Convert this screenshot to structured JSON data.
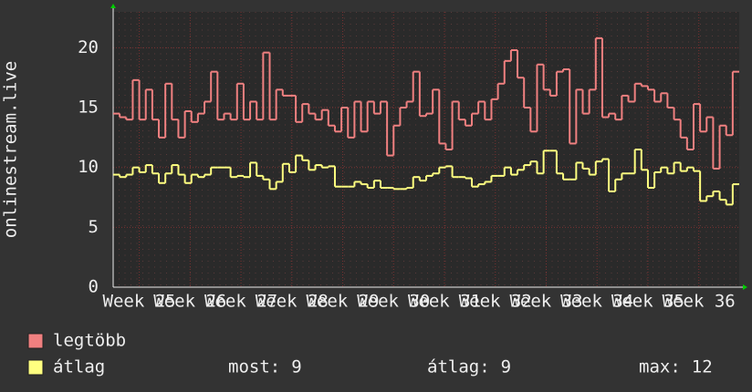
{
  "chart_data": {
    "type": "step",
    "y_label": "onlinestream.live",
    "ylim": [
      0,
      23
    ],
    "yticks": [
      0,
      5,
      10,
      15,
      20
    ],
    "xlim": [
      0,
      96
    ],
    "xticks": [
      {
        "value": 4,
        "label": "Week 25"
      },
      {
        "value": 11.8,
        "label": "Week 26"
      },
      {
        "value": 19.6,
        "label": "Week 27"
      },
      {
        "value": 27.4,
        "label": "Week 28"
      },
      {
        "value": 35.2,
        "label": "Week 29"
      },
      {
        "value": 43,
        "label": "Week 30"
      },
      {
        "value": 50.8,
        "label": "Week 31"
      },
      {
        "value": 58.6,
        "label": "Week 32"
      },
      {
        "value": 66.4,
        "label": "Week 33"
      },
      {
        "value": 74.2,
        "label": "Week 34"
      },
      {
        "value": 82,
        "label": "Week 35"
      },
      {
        "value": 89.8,
        "label": "Week 36"
      }
    ],
    "grid": true,
    "series": [
      {
        "name": "legtöbb",
        "color": "#f08080",
        "values": [
          14.5,
          14.2,
          14,
          17.3,
          14,
          16.5,
          14,
          12.5,
          17,
          14,
          12.5,
          14.7,
          13.8,
          14.5,
          15.5,
          18,
          14,
          14.5,
          14,
          17,
          14,
          15.5,
          14,
          19.6,
          14,
          16.5,
          16,
          16,
          13.8,
          15.3,
          14.5,
          14,
          14.8,
          13.5,
          13,
          15,
          12.5,
          15.5,
          13,
          15.5,
          14.5,
          15.5,
          11,
          13.5,
          15,
          15.5,
          18,
          14.3,
          14.5,
          16.5,
          12,
          11.5,
          15.5,
          14,
          13.5,
          14.5,
          15.5,
          14,
          15.7,
          17,
          18.9,
          19.8,
          17.5,
          15,
          13,
          18.6,
          16.5,
          16,
          18,
          18.2,
          12,
          16.5,
          14.5,
          16.5,
          20.8,
          14.2,
          14.5,
          14,
          16,
          15.5,
          17,
          16.8,
          16.5,
          15.5,
          16.2,
          15,
          14,
          12.5,
          11.5,
          15.3,
          13,
          14.2,
          9.9,
          13.5,
          12.7,
          18
        ]
      },
      {
        "name": "átlag",
        "color": "#ffff80",
        "values": [
          9.4,
          9.2,
          9.4,
          10,
          9.6,
          10.2,
          9.5,
          8.7,
          9.5,
          10.2,
          9.4,
          8.7,
          9.4,
          9.2,
          9.4,
          10,
          10,
          10,
          9.2,
          9.3,
          9.2,
          10.4,
          9.3,
          9,
          8.2,
          8.8,
          10.3,
          9.6,
          11,
          10.6,
          9.8,
          10.2,
          10,
          10.1,
          8.4,
          8.4,
          8.4,
          8.8,
          8.6,
          8.3,
          8.9,
          8.3,
          8.3,
          8.2,
          8.2,
          8.3,
          9.2,
          8.9,
          9.3,
          9.5,
          10,
          10.1,
          9.2,
          9.2,
          9.1,
          8.4,
          8.6,
          8.8,
          9.3,
          9.3,
          10,
          9.4,
          9.8,
          10.2,
          10.5,
          9.5,
          11.4,
          11.4,
          9.5,
          9,
          9,
          10.4,
          9.9,
          9.4,
          10.5,
          10.7,
          8,
          9,
          9.5,
          9.5,
          11.5,
          9.8,
          8.3,
          9.6,
          10,
          9.5,
          10.4,
          9.7,
          10,
          9.7,
          7.2,
          7.6,
          8,
          7.3,
          6.9,
          8.6
        ]
      }
    ],
    "stats": [
      {
        "label": "most:",
        "value": 9
      },
      {
        "label": "átlag:",
        "value": 9
      },
      {
        "label": "max:",
        "value": 12
      }
    ]
  }
}
